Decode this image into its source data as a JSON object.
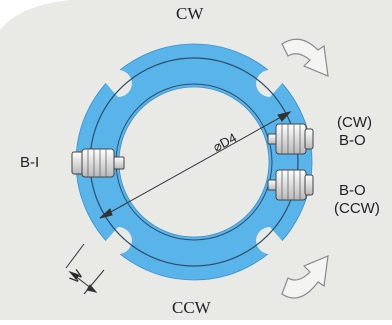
{
  "labels": {
    "top": "CW",
    "bottom": "CCW",
    "left": "B-I",
    "right_cw_paren": "(CW)",
    "right_cw_bo": "B-O",
    "right_ccw_bo": "B-O",
    "right_ccw_paren": "(CCW)",
    "diameter": "⌀D4",
    "width": "W"
  },
  "colors": {
    "background_card": "#e9e9e6",
    "ring_fill": "#59b4ea",
    "ring_outline": "#3a8fcf",
    "guide_circle": "#2d4d6b",
    "dimension_line": "#333333",
    "sensor_fill": "#f2f2f2",
    "sensor_stroke": "#444444"
  }
}
